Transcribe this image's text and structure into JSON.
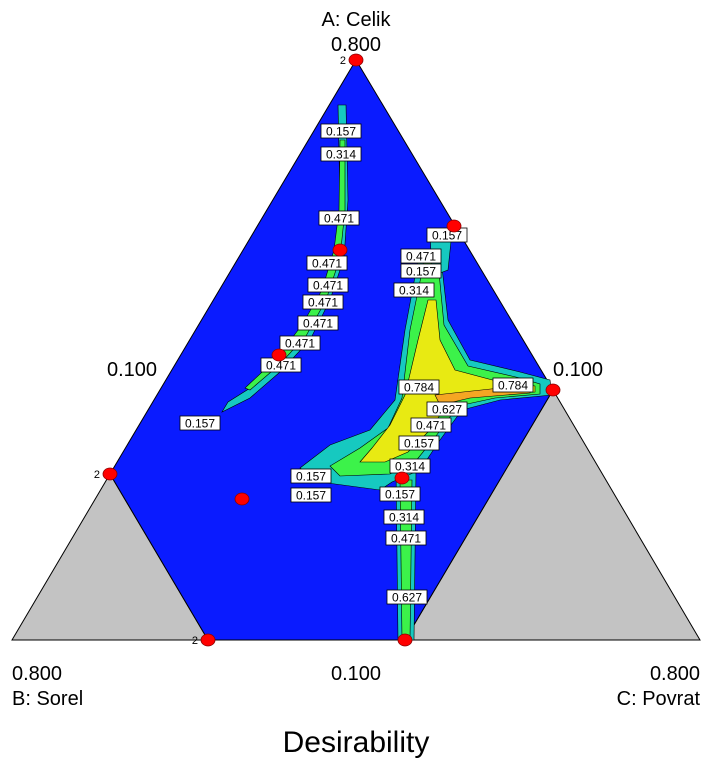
{
  "chart_data": {
    "type": "contour",
    "title": "Desirability",
    "axes": {
      "A": {
        "label": "A: Celik",
        "tick": "0.800"
      },
      "B": {
        "label": "B: Sorel",
        "tick": "0.800"
      },
      "C": {
        "label": "C: Povrat",
        "tick": "0.800"
      }
    },
    "edge_ticks": {
      "left": "0.100",
      "right": "0.100",
      "bottom": "0.100"
    },
    "contour_levels": [
      "0.157",
      "0.314",
      "0.471",
      "0.627",
      "0.784"
    ],
    "design_point_replicate_label": "2",
    "colors": {
      "background_region": "#0a1bff",
      "excluded_region": "#c3c3c3",
      "design_point": "#ff0000",
      "level_low": "#16c9c0",
      "level_mid": "#3cf24a",
      "level_high": "#e8ea12",
      "level_peak": "#f5a623"
    }
  }
}
